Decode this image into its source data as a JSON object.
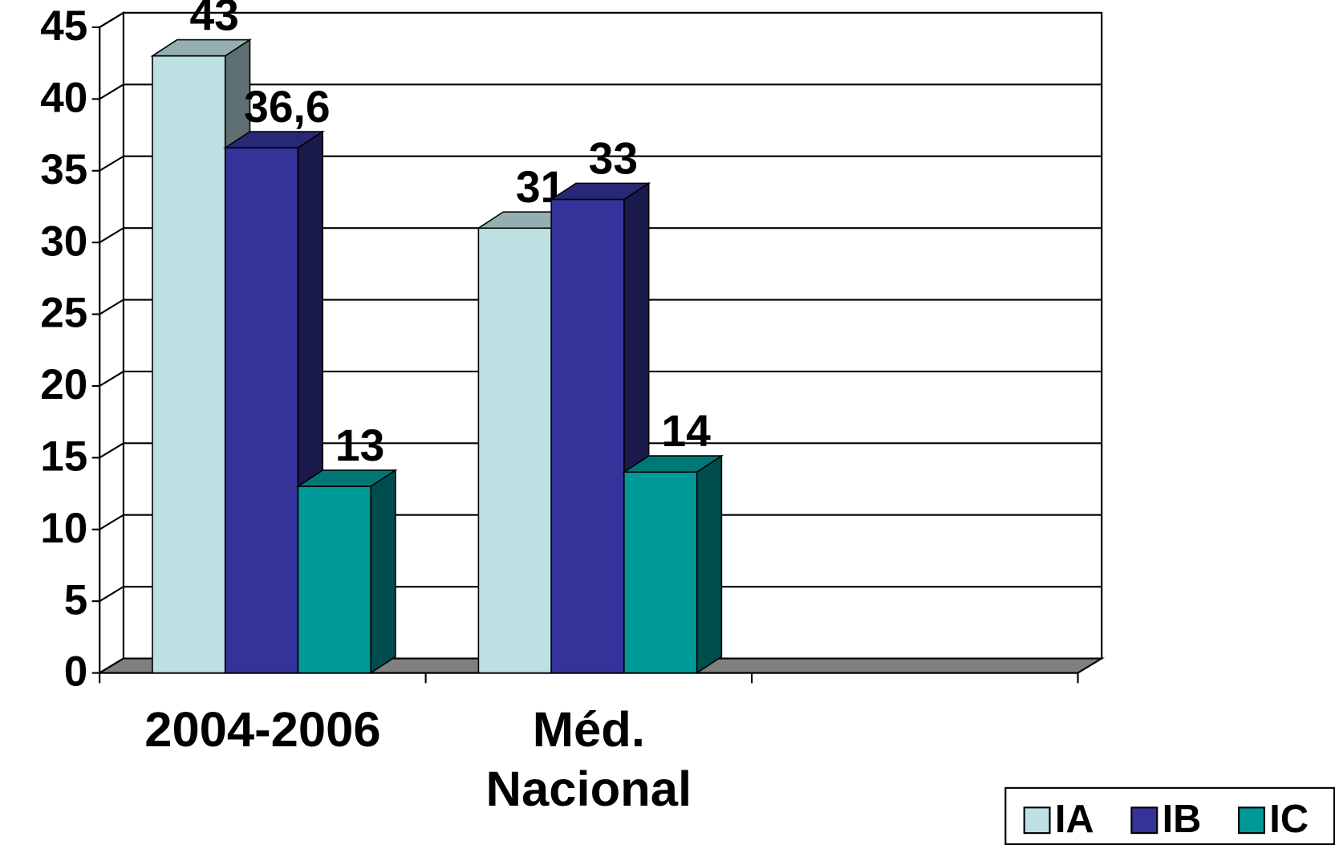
{
  "chart_data": {
    "type": "bar3d",
    "categories": [
      "2004-2006",
      "Méd. Nacional",
      null
    ],
    "series": [
      {
        "name": "IA",
        "color": "#bde0e3",
        "values": [
          43,
          31,
          null
        ]
      },
      {
        "name": "IB",
        "color": "#333399",
        "values": [
          36.6,
          33,
          null
        ],
        "value_labels": [
          "36,6",
          "33",
          null
        ]
      },
      {
        "name": "IC",
        "color": "#009999",
        "values": [
          13,
          14,
          null
        ]
      }
    ],
    "ylim": [
      0,
      45
    ],
    "yticks": [
      0,
      5,
      10,
      15,
      20,
      25,
      30,
      35,
      40,
      45
    ],
    "grid": true,
    "legend": "bottom-right"
  }
}
